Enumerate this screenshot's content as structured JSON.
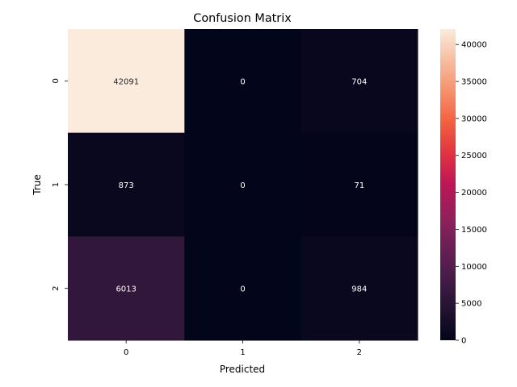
{
  "chart_data": {
    "type": "heatmap",
    "title": "Confusion Matrix",
    "xlabel": "Predicted",
    "ylabel": "True",
    "x_categories": [
      "0",
      "1",
      "2"
    ],
    "y_categories": [
      "0",
      "1",
      "2"
    ],
    "values": [
      [
        42091,
        0,
        704
      ],
      [
        873,
        0,
        71
      ],
      [
        6013,
        0,
        984
      ]
    ],
    "colorbar": {
      "min": 0,
      "max": 42091,
      "ticks": [
        0,
        5000,
        10000,
        15000,
        20000,
        25000,
        30000,
        35000,
        40000
      ],
      "colormap": "rocket"
    }
  }
}
